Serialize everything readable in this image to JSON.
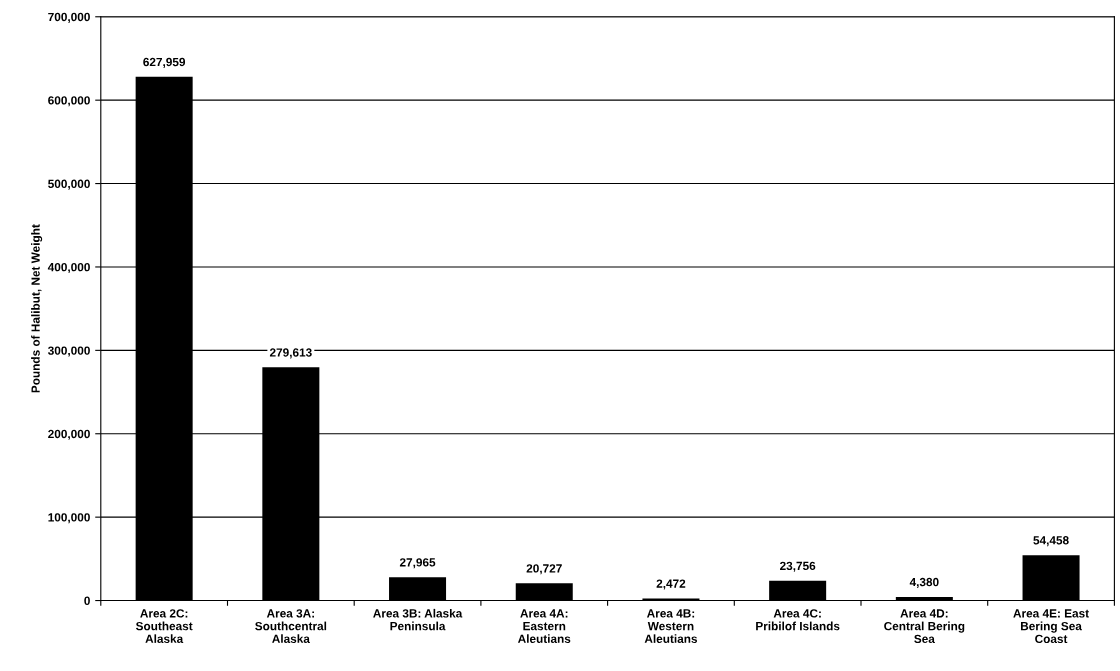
{
  "chart_data": {
    "type": "bar",
    "ylabel": "Pounds of Halibut, Net Weight",
    "categories": [
      "Area 2C:\nSoutheast\nAlaska",
      "Area 3A:\nSouthcentral\nAlaska",
      "Area 3B: Alaska\nPeninsula",
      "Area 4A:\nEastern\nAleutians",
      "Area 4B:\nWestern\nAleutians",
      "Area 4C:\nPribilof Islands",
      "Area 4D:\nCentral Bering\nSea",
      "Area 4E: East\nBering Sea\nCoast"
    ],
    "values": [
      627959,
      279613,
      27965,
      20727,
      2472,
      23756,
      4380,
      54458
    ],
    "color": "#000000",
    "value_labels": [
      "627,959",
      "279,613",
      "27,965",
      "20,727",
      "2,472",
      "23,756",
      "4,380",
      "54,458"
    ],
    "ylim": [
      0,
      700000
    ],
    "yticks": [
      {
        "value": 0,
        "label": "0"
      },
      {
        "value": 100000,
        "label": "100,000"
      },
      {
        "value": 200000,
        "label": "200,000"
      },
      {
        "value": 300000,
        "label": "300,000"
      },
      {
        "value": 400000,
        "label": "400,000"
      },
      {
        "value": 500000,
        "label": "500,000"
      },
      {
        "value": 600000,
        "label": "600,000"
      },
      {
        "value": 700000,
        "label": "700,000"
      }
    ],
    "grid": "y"
  }
}
